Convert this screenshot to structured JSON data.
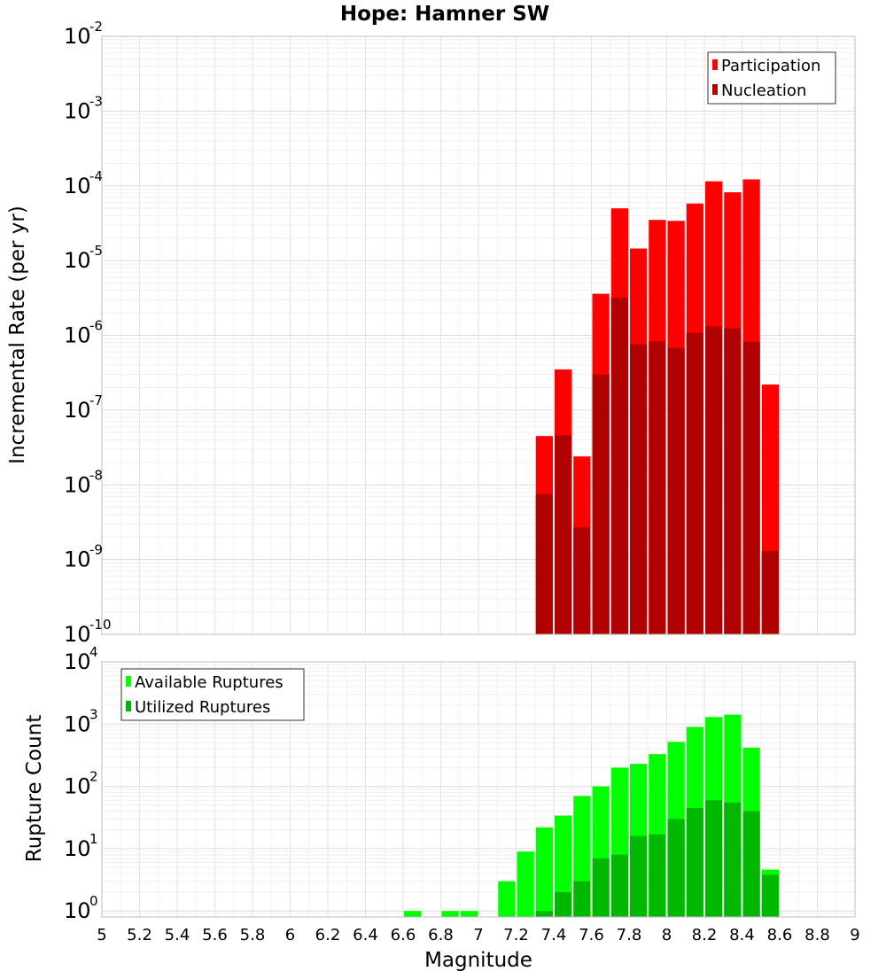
{
  "chart_data": {
    "type": "bar",
    "title": "Hope: Hamner SW",
    "xlabel": "Magnitude",
    "xlim": [
      5,
      9
    ],
    "x_ticks": [
      "5",
      "5.2",
      "5.4",
      "5.6",
      "5.8",
      "6",
      "6.2",
      "6.4",
      "6.6",
      "6.8",
      "7",
      "7.2",
      "7.4",
      "7.6",
      "7.8",
      "8",
      "8.2",
      "8.4",
      "8.6",
      "8.8",
      "9"
    ],
    "bin_width": 0.1,
    "grid": true,
    "panels": [
      {
        "ylabel": "Incremental Rate (per yr)",
        "yscale": "log",
        "ylim": [
          1e-10,
          0.01
        ],
        "y_ticks": [
          {
            "base": "10",
            "exp": "-10"
          },
          {
            "base": "10",
            "exp": "-9"
          },
          {
            "base": "10",
            "exp": "-8"
          },
          {
            "base": "10",
            "exp": "-7"
          },
          {
            "base": "10",
            "exp": "-6"
          },
          {
            "base": "10",
            "exp": "-5"
          },
          {
            "base": "10",
            "exp": "-4"
          },
          {
            "base": "10",
            "exp": "-3"
          },
          {
            "base": "10",
            "exp": "-2"
          }
        ],
        "legend_position": "top-right",
        "x": [
          7.35,
          7.45,
          7.55,
          7.65,
          7.75,
          7.85,
          7.95,
          8.05,
          8.15,
          8.25,
          8.35,
          8.45,
          8.55
        ],
        "series": [
          {
            "name": "Participation",
            "color": "#ff0000",
            "values": [
              4.5e-08,
              3.5e-07,
              2.4e-08,
              3.6e-06,
              5e-05,
              1.45e-05,
              3.5e-05,
              3.4e-05,
              5.8e-05,
              0.000115,
              8.2e-05,
              0.000122,
              2.2e-07
            ]
          },
          {
            "name": "Nucleation",
            "color": "#b00000",
            "values": [
              7.5e-09,
              4.6e-08,
              2.7e-09,
              3e-07,
              3.2e-06,
              7.6e-07,
              8.3e-07,
              6.8e-07,
              1.08e-06,
              1.32e-06,
              1.24e-06,
              8.2e-07,
              1.3e-09
            ]
          }
        ]
      },
      {
        "ylabel": "Rupture Count",
        "yscale": "log",
        "ylim": [
          0.8,
          10000
        ],
        "y_ticks": [
          {
            "base": "10",
            "exp": "0"
          },
          {
            "base": "10",
            "exp": "1"
          },
          {
            "base": "10",
            "exp": "2"
          },
          {
            "base": "10",
            "exp": "3"
          },
          {
            "base": "10",
            "exp": "4"
          }
        ],
        "legend_position": "top-left",
        "x": [
          6.65,
          6.85,
          6.95,
          7.15,
          7.25,
          7.35,
          7.45,
          7.55,
          7.65,
          7.75,
          7.85,
          7.95,
          8.05,
          8.15,
          8.25,
          8.35,
          8.45,
          8.55
        ],
        "series": [
          {
            "name": "Available Ruptures",
            "color": "#00ff00",
            "values": [
              1,
              1,
              1,
              3,
              9,
              22,
              34,
              70,
              100,
              200,
              230,
              330,
              520,
              900,
              1300,
              1420,
              420,
              4.6
            ]
          },
          {
            "name": "Utilized Ruptures",
            "color": "#00b800",
            "values": [
              0,
              0,
              0,
              0,
              0,
              1,
              2,
              3,
              7,
              8,
              16,
              17,
              30,
              45,
              60,
              55,
              40,
              3.8
            ]
          }
        ]
      }
    ]
  }
}
